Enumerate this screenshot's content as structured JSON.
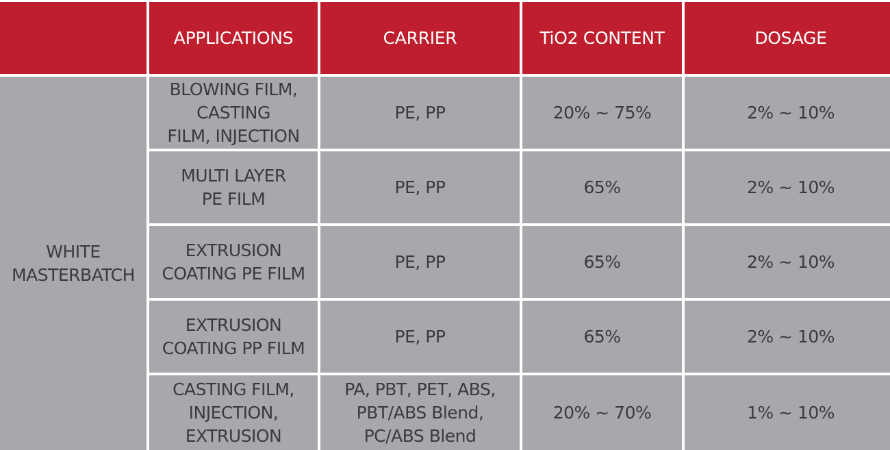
{
  "table": {
    "headers": [
      "",
      "APPLICATIONS",
      "CARRIER",
      "TiO2 CONTENT",
      "DOSAGE"
    ],
    "row_label": "WHITE\nMASTERBATCH",
    "rows": [
      {
        "application": "BLOWING FILM,\nCASTING\nFILM, INJECTION",
        "carrier": "PE, PP",
        "tio2": "20% ~ 75%",
        "dosage": "2% ~ 10%"
      },
      {
        "application": "MULTI LAYER\nPE FILM",
        "carrier": "PE, PP",
        "tio2": "65%",
        "dosage": "2% ~ 10%"
      },
      {
        "application": "EXTRUSION\nCOATING PE FILM",
        "carrier": "PE, PP",
        "tio2": "65%",
        "dosage": "2% ~ 10%"
      },
      {
        "application": "EXTRUSION\nCOATING PP FILM",
        "carrier": "PE, PP",
        "tio2": "65%",
        "dosage": "2% ~ 10%"
      },
      {
        "application": "CASTING FILM,\nINJECTION,\nEXTRUSION",
        "carrier": "PA, PBT, PET, ABS,\nPBT/ABS Blend,\nPC/ABS Blend",
        "tio2": "20% ~ 70%",
        "dosage": "1% ~ 10%"
      }
    ]
  },
  "colors": {
    "header_bg": "#be1e2d",
    "header_text": "#ffffff",
    "cell_bg": "#a7a8ab",
    "cell_text": "#3a3b3d"
  }
}
